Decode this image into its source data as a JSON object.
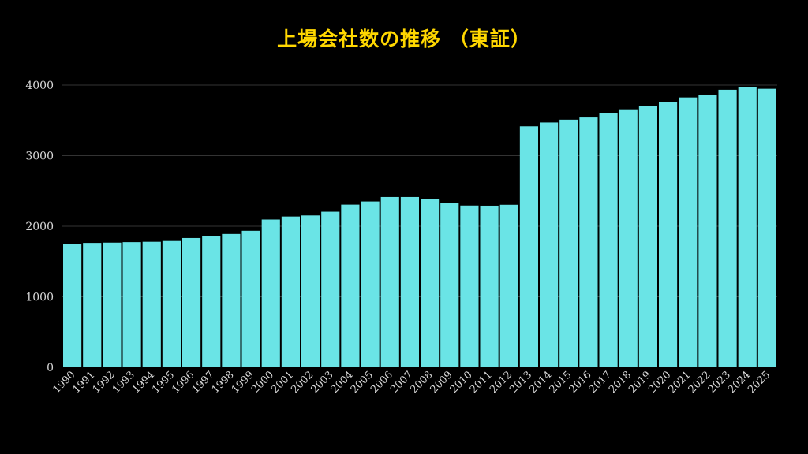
{
  "chart_data": {
    "type": "bar",
    "title": "上場会社数の推移 （東証）",
    "xlabel": "",
    "ylabel": "",
    "ylim": [
      0,
      4000
    ],
    "yticks": [
      "0",
      "1000",
      "2000",
      "3000",
      "4000"
    ],
    "grid": true,
    "legend": "none",
    "categories": [
      "1990",
      "1991",
      "1992",
      "1993",
      "1994",
      "1995",
      "1996",
      "1997",
      "1998",
      "1999",
      "2000",
      "2001",
      "2002",
      "2003",
      "2004",
      "2005",
      "2006",
      "2007",
      "2008",
      "2009",
      "2010",
      "2011",
      "2012",
      "2013",
      "2014",
      "2015",
      "2016",
      "2017",
      "2018",
      "2019",
      "2020",
      "2021",
      "2022",
      "2023",
      "2024",
      "2025"
    ],
    "values": [
      1752,
      1764,
      1768,
      1775,
      1780,
      1791,
      1833,
      1865,
      1890,
      1935,
      2095,
      2138,
      2153,
      2206,
      2306,
      2351,
      2414,
      2414,
      2390,
      2335,
      2293,
      2291,
      2304,
      3416,
      3470,
      3510,
      3541,
      3604,
      3657,
      3706,
      3755,
      3825,
      3866,
      3934,
      3974,
      3948
    ],
    "colors": {
      "bar": "#6ae4e6",
      "background": "#000000",
      "title": "#ffd700",
      "grid": "#333333",
      "text": "#d8d8d8"
    }
  }
}
